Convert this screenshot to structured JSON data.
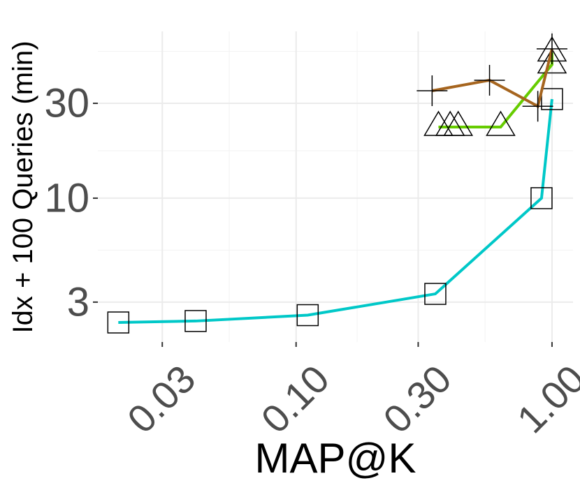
{
  "chart_data": {
    "type": "line",
    "x_label": "MAP@K",
    "y_label": "Idx + 100 Queries (min)",
    "log_x": true,
    "log_y": true,
    "grid": true,
    "minor_grid": true,
    "xlim": [
      0.0168,
      1.208
    ],
    "ylim": [
      1.89,
      69
    ],
    "xticks": [
      0.03,
      {
        "value": 0.1,
        "label": "0.10"
      },
      {
        "value": 0.3,
        "label": "0.30"
      },
      {
        "value": 1,
        "label": "1.00"
      }
    ],
    "yticks": [
      3,
      10,
      30
    ],
    "series": [
      {
        "color": "#00c8c8",
        "marker": "square",
        "x": [
          0.0202,
          0.0405,
          0.111,
          0.35,
          0.91,
          1.0
        ],
        "values": [
          2.37,
          2.41,
          2.58,
          3.3,
          10,
          31.5
        ]
      },
      {
        "color": "#66cc00",
        "marker": "triangle",
        "x": [
          0.36,
          0.4,
          0.43,
          0.63,
          1.0,
          1.0
        ],
        "values": [
          22.8,
          22.8,
          22.8,
          22.8,
          47,
          54
        ]
      },
      {
        "color": "#a6651f",
        "marker": "plus",
        "x": [
          0.34,
          0.57,
          0.88,
          1.0
        ],
        "values": [
          34.7,
          39.2,
          29,
          56.4
        ]
      }
    ]
  }
}
